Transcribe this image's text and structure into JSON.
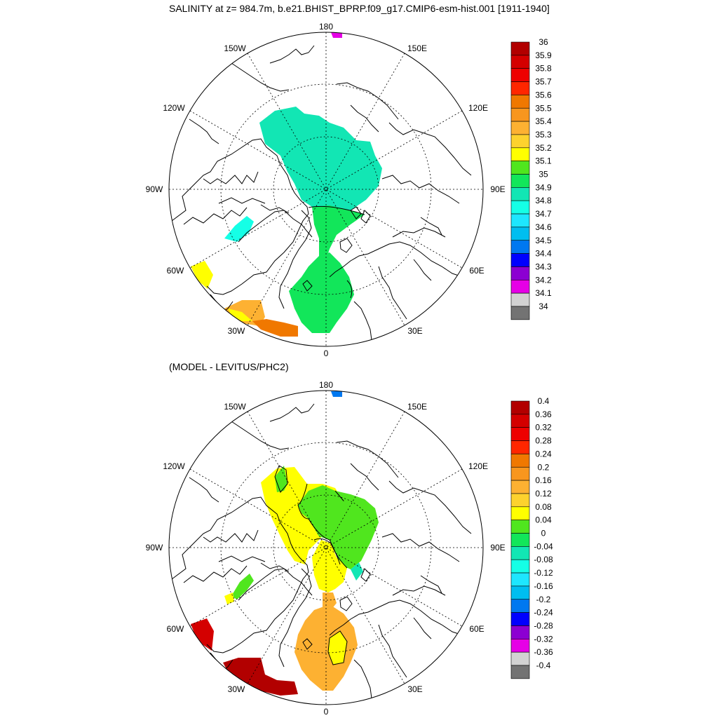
{
  "title": "SALINITY at z= 984.7m, b.e21.BHIST_BPRP.f09_g17.CMIP6-esm-hist.001 [1911-1940]",
  "subtitle": "(MODEL - LEVITUS/PHC2)",
  "lon_labels": {
    "top": "180",
    "bottom": "0",
    "ul1": "150W",
    "ur1": "150E",
    "ul2": "120W",
    "ur2": "120E",
    "left": "90W",
    "right": "90E",
    "ll2": "60W",
    "lr2": "60E",
    "ll1": "30W",
    "lr1": "30E"
  },
  "colorbar_top": {
    "labels": [
      "36",
      "35.9",
      "35.8",
      "35.7",
      "35.6",
      "35.5",
      "35.4",
      "35.3",
      "35.2",
      "35.1",
      "35",
      "34.9",
      "34.8",
      "34.7",
      "34.6",
      "34.5",
      "34.4",
      "34.3",
      "34.2",
      "34.1",
      "34"
    ],
    "colors": [
      "#b20000",
      "#d40000",
      "#ee0000",
      "#ff2600",
      "#f07800",
      "#f8961e",
      "#fdb132",
      "#fdd22e",
      "#ffff00",
      "#50e61e",
      "#12e65a",
      "#12e6b4",
      "#15ffe6",
      "#1ee6ff",
      "#00bef0",
      "#0078f0",
      "#0000ff",
      "#8c00d2",
      "#e600e6",
      "#d2d2d2",
      "#737373"
    ]
  },
  "colorbar_bottom": {
    "labels": [
      "0.4",
      "0.36",
      "0.32",
      "0.28",
      "0.24",
      "0.2",
      "0.16",
      "0.12",
      "0.08",
      "0.04",
      "0",
      "-0.04",
      "-0.08",
      "-0.12",
      "-0.16",
      "-0.2",
      "-0.24",
      "-0.28",
      "-0.32",
      "-0.36",
      "-0.4"
    ],
    "colors": [
      "#b20000",
      "#d40000",
      "#ee0000",
      "#ff2600",
      "#f07800",
      "#f8961e",
      "#fdb132",
      "#fdd22e",
      "#ffff00",
      "#50e61e",
      "#12e65a",
      "#12e6b4",
      "#15ffe6",
      "#1ee6ff",
      "#00bef0",
      "#0078f0",
      "#0000ff",
      "#8c00d2",
      "#e600e6",
      "#d2d2d2",
      "#737373"
    ]
  },
  "map_top": {
    "arctic_basin_color": "#12e6b4",
    "atlantic_inflow_color": "#12e65a",
    "greenland_sea_color": "#12e65a",
    "baffin_color": "#15ffe6",
    "labrador_color": "#ffff00",
    "north_atlantic_colors": [
      "#fdb132",
      "#f07800",
      "#ffff00"
    ],
    "bering_color": "#e600e6"
  },
  "map_bottom": {
    "canada_basin_color": "#ffff00",
    "eurasian_basin_color": "#50e61e",
    "central_tongue_color": "#ffff00",
    "fram_color": "#fdb132",
    "greenland_sea_color": "#fdb132",
    "baffin_color": "#50e61e",
    "labrador_color": "#d40000",
    "north_atlantic_color": "#b20000",
    "bering_color": "#0078f0"
  }
}
